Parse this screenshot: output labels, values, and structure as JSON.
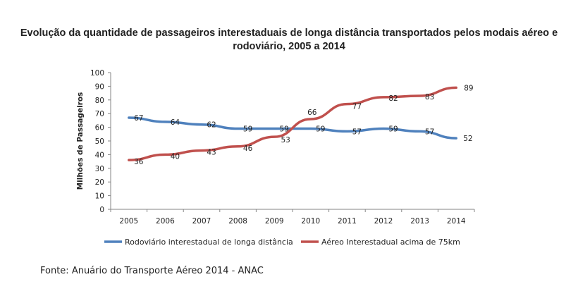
{
  "title_line1": "Evolução da quantidade de passageiros interestaduais de longa distância transportados pelos modais aéreo e",
  "title_line2": "rodoviário, 2005 a 2014",
  "source": "Fonte: Anuário do Transporte Aéreo 2014 - ANAC",
  "chart_data": {
    "type": "line",
    "title": "Evolução da quantidade de passageiros interestaduais de longa distância transportados pelos modais aéreo e rodoviário, 2005 a 2014",
    "xlabel": "",
    "ylabel": "Milhões de Passageiros",
    "x": [
      "2005",
      "2006",
      "2007",
      "2008",
      "2009",
      "2010",
      "2011",
      "2012",
      "2013",
      "2014"
    ],
    "ylim": [
      0,
      100
    ],
    "yticks": [
      0,
      10,
      20,
      30,
      40,
      50,
      60,
      70,
      80,
      90,
      100
    ],
    "grid": false,
    "legend_position": "bottom",
    "series": [
      {
        "name": "Rodoviário interestadual de longa distância",
        "color": "#4f81bd",
        "values": [
          67,
          64,
          62,
          59,
          59,
          59,
          57,
          59,
          57,
          52
        ]
      },
      {
        "name": "Aéreo Interestadual acima de 75km",
        "color": "#c0504d",
        "values": [
          36,
          40,
          43,
          46,
          53,
          66,
          77,
          82,
          83,
          89
        ]
      }
    ]
  }
}
